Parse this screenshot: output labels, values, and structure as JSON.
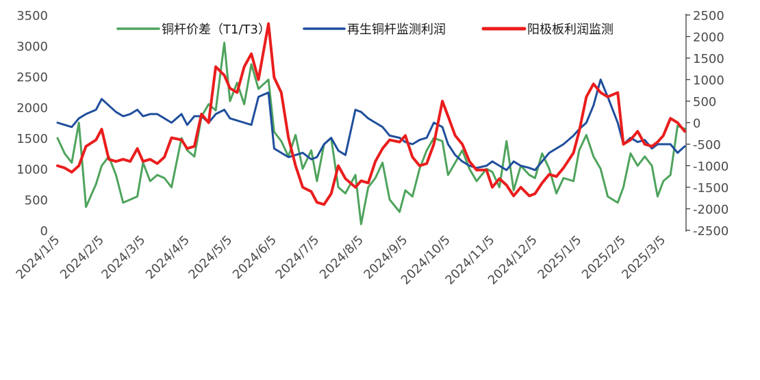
{
  "chart_data": {
    "type": "line",
    "x_dates": [
      "2024/1/5",
      "2024/1/10",
      "2024/1/15",
      "2024/1/20",
      "2024/1/25",
      "2024/2/1",
      "2024/2/5",
      "2024/2/10",
      "2024/2/15",
      "2024/2/20",
      "2024/2/25",
      "2024/3/1",
      "2024/3/5",
      "2024/3/10",
      "2024/3/15",
      "2024/3/20",
      "2024/3/25",
      "2024/4/1",
      "2024/4/5",
      "2024/4/10",
      "2024/4/15",
      "2024/4/20",
      "2024/4/25",
      "2024/5/1",
      "2024/5/5",
      "2024/5/10",
      "2024/5/15",
      "2024/5/20",
      "2024/5/25",
      "2024/6/1",
      "2024/6/5",
      "2024/6/10",
      "2024/6/15",
      "2024/6/20",
      "2024/6/25",
      "2024/7/1",
      "2024/7/5",
      "2024/7/10",
      "2024/7/15",
      "2024/7/20",
      "2024/7/25",
      "2024/8/1",
      "2024/8/5",
      "2024/8/10",
      "2024/8/15",
      "2024/8/20",
      "2024/8/25",
      "2024/9/1",
      "2024/9/5",
      "2024/9/10",
      "2024/9/15",
      "2024/9/20",
      "2024/9/25",
      "2024/10/1",
      "2024/10/5",
      "2024/10/10",
      "2024/10/15",
      "2024/10/20",
      "2024/10/25",
      "2024/11/1",
      "2024/11/5",
      "2024/11/10",
      "2024/11/15",
      "2024/11/20",
      "2024/11/25",
      "2024/12/1",
      "2024/12/5",
      "2024/12/10",
      "2024/12/15",
      "2024/12/20",
      "2024/12/25",
      "2025/1/1",
      "2025/1/5",
      "2025/1/10",
      "2025/1/15",
      "2025/1/20",
      "2025/1/25",
      "2025/2/1",
      "2025/2/5",
      "2025/2/10",
      "2025/2/15",
      "2025/2/20",
      "2025/2/25",
      "2025/3/1",
      "2025/3/5",
      "2025/3/10",
      "2025/3/15",
      "2025/3/20"
    ],
    "x_ticks": [
      "2024/1/5",
      "2024/2/5",
      "2024/3/5",
      "2024/4/5",
      "2024/5/5",
      "2024/6/5",
      "2024/7/5",
      "2024/8/5",
      "2024/9/5",
      "2024/10/5",
      "2024/11/5",
      "2024/12/5",
      "2025/1/5",
      "2025/2/5",
      "2025/3/5"
    ],
    "y_left": {
      "ticks": [
        0,
        500,
        1000,
        1500,
        2000,
        2500,
        3000,
        3500
      ],
      "ylim": [
        0,
        3500
      ]
    },
    "y_right": {
      "ticks": [
        -2500,
        -2000,
        -1500,
        -1000,
        -500,
        0,
        500,
        1000,
        1500,
        2000,
        2500
      ],
      "ylim": [
        -2500,
        2500
      ]
    },
    "series": [
      {
        "name": "铜杆价差（T1/T3）",
        "axis": "left",
        "color": "#4ea35c",
        "values": [
          1500,
          1250,
          1100,
          1750,
          380,
          750,
          1050,
          1200,
          900,
          450,
          500,
          550,
          1100,
          800,
          900,
          850,
          700,
          1500,
          1300,
          1200,
          1850,
          2050,
          1950,
          3050,
          2100,
          2400,
          2050,
          2700,
          2300,
          2450,
          1600,
          1450,
          1200,
          1550,
          1000,
          1300,
          800,
          1400,
          1500,
          700,
          600,
          900,
          100,
          700,
          850,
          1100,
          500,
          300,
          650,
          550,
          1000,
          1300,
          1500,
          1450,
          900,
          1100,
          1300,
          1000,
          800,
          1000,
          950,
          700,
          1450,
          650,
          1050,
          900,
          850,
          1250,
          1000,
          600,
          850,
          800,
          1300,
          1550,
          1200,
          1000,
          550,
          450,
          700,
          1250,
          1050,
          1200,
          1050,
          550,
          800,
          900,
          1700,
          1650
        ]
      },
      {
        "name": "再生铜杆监测利润",
        "axis": "right",
        "color": "#1f4e9c",
        "values": [
          0,
          -50,
          -100,
          100,
          200,
          300,
          550,
          400,
          250,
          150,
          200,
          300,
          150,
          200,
          200,
          100,
          0,
          200,
          -50,
          150,
          150,
          0,
          200,
          300,
          100,
          50,
          0,
          -50,
          600,
          700,
          -600,
          -700,
          -800,
          -750,
          -700,
          -850,
          -800,
          -500,
          -350,
          -650,
          -750,
          300,
          250,
          100,
          0,
          -100,
          -300,
          -350,
          -450,
          -500,
          -400,
          -350,
          0,
          -100,
          -500,
          -750,
          -900,
          -1000,
          -1050,
          -1000,
          -900,
          -1000,
          -1100,
          -900,
          -1000,
          -1050,
          -1100,
          -900,
          -700,
          -600,
          -500,
          -300,
          -150,
          0,
          400,
          1000,
          600,
          0,
          -500,
          -350,
          -450,
          -400,
          -600,
          -500,
          -500,
          -500,
          -700,
          -550
        ]
      },
      {
        "name": "阳极板利润监测",
        "axis": "right",
        "color": "#ea1d1d",
        "values": [
          -1000,
          -1050,
          -1150,
          -1000,
          -550,
          -400,
          -150,
          -850,
          -900,
          -850,
          -900,
          -600,
          -900,
          -850,
          -950,
          -800,
          -350,
          -400,
          -600,
          -550,
          200,
          0,
          1300,
          1100,
          800,
          700,
          1300,
          1600,
          1000,
          2300,
          1050,
          700,
          -350,
          -1000,
          -1500,
          -1600,
          -1850,
          -1900,
          -1650,
          -1000,
          -1300,
          -1500,
          -1350,
          -1400,
          -900,
          -600,
          -400,
          -450,
          -300,
          -800,
          -1000,
          -950,
          -500,
          500,
          150,
          -300,
          -500,
          -900,
          -1100,
          -1100,
          -1500,
          -1300,
          -1450,
          -1700,
          -1500,
          -1700,
          -1650,
          -1400,
          -1200,
          -1250,
          -1050,
          -700,
          -200,
          600,
          900,
          700,
          600,
          700,
          -500,
          -400,
          -200,
          -500,
          -550,
          -450,
          -300,
          100,
          0,
          -200
        ]
      }
    ]
  }
}
